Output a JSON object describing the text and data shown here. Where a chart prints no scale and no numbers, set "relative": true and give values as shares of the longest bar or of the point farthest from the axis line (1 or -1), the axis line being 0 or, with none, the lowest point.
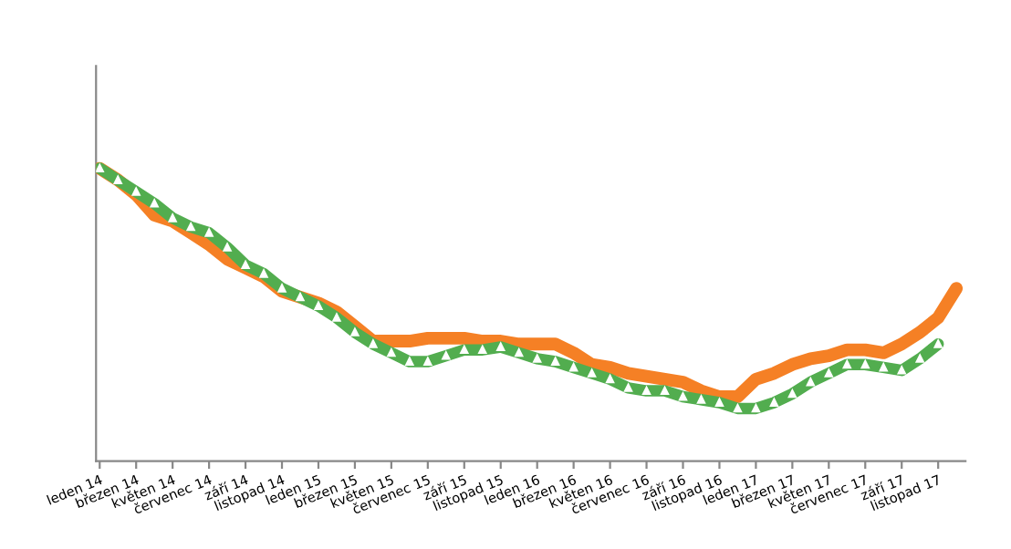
{
  "chart_data": {
    "type": "line",
    "relative": true,
    "categories": [
      "leden 14",
      null,
      "březen 14",
      null,
      "květen 14",
      null,
      "červenec 14",
      null,
      "září 14",
      null,
      "listopad 14",
      null,
      "leden 15",
      null,
      "březen 15",
      null,
      "květen 15",
      null,
      "červenec 15",
      null,
      "září 15",
      null,
      "listopad 15",
      null,
      "leden 16",
      null,
      "březen 16",
      null,
      "květen 16",
      null,
      "červenec 16",
      null,
      "září 16",
      null,
      "listopad 16",
      null,
      "leden 17",
      null,
      "březen 17",
      null,
      "květen 17",
      null,
      "červenec 17",
      null,
      "září 17",
      null,
      "listopad 17",
      null
    ],
    "series": [
      {
        "color": "#f58025",
        "marker": "none",
        "values": [
          1.0,
          0.96,
          0.91,
          0.84,
          0.82,
          0.78,
          0.74,
          0.69,
          0.66,
          0.63,
          0.58,
          0.56,
          0.54,
          0.51,
          0.46,
          0.41,
          0.41,
          0.41,
          0.42,
          0.42,
          0.42,
          0.41,
          0.41,
          0.4,
          0.4,
          0.4,
          0.37,
          0.33,
          0.32,
          0.3,
          0.29,
          0.28,
          0.27,
          0.24,
          0.22,
          0.22,
          0.28,
          0.3,
          0.33,
          0.35,
          0.36,
          0.38,
          0.38,
          0.37,
          0.4,
          0.44,
          0.49,
          0.59
        ]
      },
      {
        "color": "#52ad4f",
        "marker": "triangle",
        "values": [
          1.0,
          0.96,
          0.92,
          0.88,
          0.83,
          0.8,
          0.78,
          0.73,
          0.67,
          0.64,
          0.59,
          0.56,
          0.53,
          0.49,
          0.44,
          0.4,
          0.37,
          0.34,
          0.34,
          0.36,
          0.38,
          0.38,
          0.39,
          0.37,
          0.35,
          0.34,
          0.32,
          0.3,
          0.28,
          0.25,
          0.24,
          0.24,
          0.22,
          0.21,
          0.2,
          0.18,
          0.18,
          0.2,
          0.23,
          0.27,
          0.3,
          0.33,
          0.33,
          0.32,
          0.31,
          0.35,
          0.4,
          null
        ]
      }
    ]
  }
}
